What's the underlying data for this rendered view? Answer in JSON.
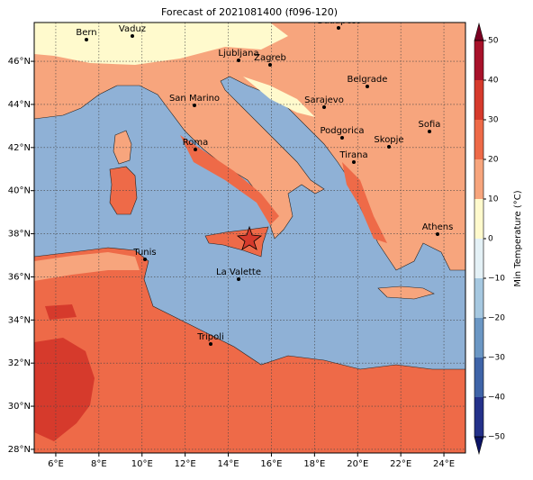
{
  "map": {
    "title": "Forecast of 2021081400 (f096-120)",
    "lon_range": [
      5,
      25
    ],
    "lat_range": [
      27.83,
      47.8
    ],
    "lon_ticks": [
      {
        "value": 6,
        "label": "6°E"
      },
      {
        "value": 8,
        "label": "8°E"
      },
      {
        "value": 10,
        "label": "10°E"
      },
      {
        "value": 12,
        "label": "12°E"
      },
      {
        "value": 14,
        "label": "14°E"
      },
      {
        "value": 16,
        "label": "16°E"
      },
      {
        "value": 18,
        "label": "18°E"
      },
      {
        "value": 20,
        "label": "20°E"
      },
      {
        "value": 22,
        "label": "22°E"
      },
      {
        "value": 24,
        "label": "24°E"
      }
    ],
    "lat_ticks": [
      {
        "value": 28,
        "label": "28°N"
      },
      {
        "value": 30,
        "label": "30°N"
      },
      {
        "value": 32,
        "label": "32°N"
      },
      {
        "value": 34,
        "label": "34°N"
      },
      {
        "value": 36,
        "label": "36°N"
      },
      {
        "value": 38,
        "label": "38°N"
      },
      {
        "value": 40,
        "label": "40°N"
      },
      {
        "value": 42,
        "label": "42°N"
      },
      {
        "value": 44,
        "label": "44°N"
      },
      {
        "value": 46,
        "label": "46°N"
      }
    ],
    "grid": true,
    "cities": [
      "Bern",
      "Vaduz",
      "Budapest",
      "Ljubljana",
      "Zagreb",
      "Belgrade",
      "Sarajevo",
      "San Marino",
      "Roma",
      "Podgorica",
      "Skopje",
      "Sofia",
      "Tirana",
      "Athens",
      "Tunis",
      "La Valette",
      "Tripoli"
    ],
    "colorbar": {
      "label": "Min Temperature (°C)",
      "lim": [
        -50,
        50
      ],
      "ticks": [
        {
          "value": -50,
          "label": "−50"
        },
        {
          "value": -40,
          "label": "−40"
        },
        {
          "value": -30,
          "label": "−30"
        },
        {
          "value": -20,
          "label": "−20"
        },
        {
          "value": -10,
          "label": "−10"
        },
        0,
        10,
        20,
        30,
        40,
        50
      ],
      "colors": [
        "#24318a",
        "#3f64a8",
        "#6b97c4",
        "#a6c8e0",
        "#e4f1f6",
        "#fffacd",
        "#f7a57d",
        "#ee6a48",
        "#d63a2c",
        "#a8122a"
      ],
      "under_color": "#0c1466",
      "over_color": "#7a0022"
    }
  }
}
